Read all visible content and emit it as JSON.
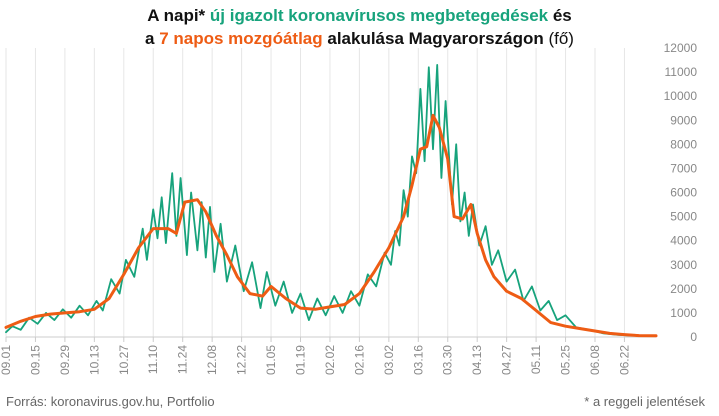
{
  "title": {
    "line1_part1": "A napi* ",
    "line1_part2": "új igazolt koronavírusos megbetegedések",
    "line1_part3": " és",
    "line2_part1": "a ",
    "line2_part2": "7 napos mozgóátlag",
    "line2_part3": " alakulása Magyarországon",
    "line2_part4": " (fő)"
  },
  "source": "Forrás: koronavirus.gov.hu, Portfolio",
  "footnote": "* a reggeli jelentések",
  "colors": {
    "daily": "#17a37c",
    "average": "#ee5c14",
    "grid": "#e6e6e6",
    "axis": "#cccccc"
  },
  "chart_data": {
    "type": "line",
    "x_type": "date",
    "x_range": [
      "2020-09-01",
      "2021-07-07"
    ],
    "xticks": [
      "2020-09-01",
      "2020-09-15",
      "2020-09-29",
      "2020-10-13",
      "2020-10-27",
      "2020-11-10",
      "2020-11-24",
      "2020-12-08",
      "2020-12-22",
      "2021-01-05",
      "2021-01-19",
      "2021-02-02",
      "2021-02-16",
      "2021-03-02",
      "2021-03-16",
      "2021-03-30",
      "2021-04-13",
      "2021-04-27",
      "2021-05-11",
      "2021-05-25",
      "2021-06-08",
      "2021-06-22"
    ],
    "xtick_labels": [
      "09.01",
      "09.15",
      "09.29",
      "10.13",
      "10.27",
      "11.10",
      "11.24",
      "12.08",
      "12.22",
      "01.05",
      "01.19",
      "02.02",
      "02.16",
      "03.02",
      "03.16",
      "03.30",
      "04.13",
      "04.27",
      "05.11",
      "05.25",
      "06.08",
      "06.22"
    ],
    "ylim": [
      0,
      12000
    ],
    "yticks": [
      0,
      1000,
      2000,
      3000,
      4000,
      5000,
      6000,
      7000,
      8000,
      9000,
      10000,
      11000,
      12000
    ],
    "y_axis_side": "right",
    "grid": "vertical",
    "series": [
      {
        "name": "új igazolt koronavírusos megbetegedések",
        "role": "daily",
        "x": [
          "2020-09-01",
          "2020-09-04",
          "2020-09-08",
          "2020-09-12",
          "2020-09-16",
          "2020-09-20",
          "2020-09-24",
          "2020-09-28",
          "2020-10-02",
          "2020-10-06",
          "2020-10-10",
          "2020-10-14",
          "2020-10-17",
          "2020-10-21",
          "2020-10-25",
          "2020-10-28",
          "2020-11-01",
          "2020-11-05",
          "2020-11-07",
          "2020-11-10",
          "2020-11-12",
          "2020-11-14",
          "2020-11-16",
          "2020-11-19",
          "2020-11-21",
          "2020-11-23",
          "2020-11-26",
          "2020-11-28",
          "2020-12-01",
          "2020-12-03",
          "2020-12-05",
          "2020-12-07",
          "2020-12-09",
          "2020-12-12",
          "2020-12-15",
          "2020-12-19",
          "2020-12-23",
          "2020-12-27",
          "2020-12-31",
          "2021-01-03",
          "2021-01-07",
          "2021-01-11",
          "2021-01-15",
          "2021-01-19",
          "2021-01-23",
          "2021-01-27",
          "2021-01-31",
          "2021-02-04",
          "2021-02-08",
          "2021-02-12",
          "2021-02-16",
          "2021-02-20",
          "2021-02-24",
          "2021-02-28",
          "2021-03-03",
          "2021-03-05",
          "2021-03-07",
          "2021-03-09",
          "2021-03-11",
          "2021-03-13",
          "2021-03-15",
          "2021-03-17",
          "2021-03-19",
          "2021-03-21",
          "2021-03-23",
          "2021-03-25",
          "2021-03-27",
          "2021-03-29",
          "2021-04-01",
          "2021-04-03",
          "2021-04-05",
          "2021-04-07",
          "2021-04-09",
          "2021-04-11",
          "2021-04-14",
          "2021-04-17",
          "2021-04-20",
          "2021-04-23",
          "2021-04-27",
          "2021-05-01",
          "2021-05-05",
          "2021-05-09",
          "2021-05-13",
          "2021-05-17",
          "2021-05-21",
          "2021-05-25",
          "2021-05-30",
          "2021-06-05",
          "2021-06-12",
          "2021-06-19",
          "2021-06-26",
          "2021-07-03"
        ],
        "values": [
          200,
          450,
          300,
          800,
          550,
          1000,
          700,
          1150,
          800,
          1300,
          900,
          1500,
          1100,
          2400,
          1800,
          3200,
          2500,
          4500,
          3200,
          5300,
          4100,
          5800,
          3900,
          6800,
          4200,
          6600,
          3400,
          6000,
          3600,
          5600,
          3300,
          5400,
          2700,
          4700,
          2300,
          3800,
          1900,
          3100,
          1200,
          2700,
          1300,
          2300,
          1000,
          1800,
          700,
          1600,
          900,
          1700,
          1000,
          1900,
          1300,
          2600,
          2100,
          3500,
          3000,
          4400,
          3800,
          6100,
          5000,
          7500,
          6800,
          10300,
          7300,
          11200,
          7800,
          11300,
          6600,
          9800,
          5500,
          8000,
          4800,
          6000,
          4200,
          5500,
          3800,
          4600,
          3000,
          3600,
          2300,
          2800,
          1500,
          2100,
          1100,
          1500,
          700,
          900,
          400,
          300,
          150,
          90,
          60,
          50
        ]
      },
      {
        "name": "7 napos mozgóátlag",
        "role": "average",
        "x": [
          "2020-09-01",
          "2020-09-08",
          "2020-09-15",
          "2020-09-22",
          "2020-09-29",
          "2020-10-06",
          "2020-10-13",
          "2020-10-20",
          "2020-10-27",
          "2020-11-03",
          "2020-11-10",
          "2020-11-17",
          "2020-11-21",
          "2020-11-25",
          "2020-12-01",
          "2020-12-05",
          "2020-12-10",
          "2020-12-15",
          "2020-12-20",
          "2020-12-26",
          "2021-01-01",
          "2021-01-05",
          "2021-01-12",
          "2021-01-19",
          "2021-01-26",
          "2021-02-02",
          "2021-02-09",
          "2021-02-16",
          "2021-02-23",
          "2021-03-02",
          "2021-03-09",
          "2021-03-13",
          "2021-03-17",
          "2021-03-20",
          "2021-03-23",
          "2021-03-26",
          "2021-03-30",
          "2021-04-02",
          "2021-04-06",
          "2021-04-10",
          "2021-04-13",
          "2021-04-17",
          "2021-04-21",
          "2021-04-27",
          "2021-05-04",
          "2021-05-11",
          "2021-05-18",
          "2021-05-25",
          "2021-06-01",
          "2021-06-08",
          "2021-06-15",
          "2021-06-22",
          "2021-06-29",
          "2021-07-07"
        ],
        "values": [
          400,
          650,
          850,
          950,
          1000,
          1050,
          1150,
          1600,
          2600,
          3700,
          4500,
          4500,
          4300,
          5600,
          5700,
          5200,
          4200,
          3400,
          2500,
          1800,
          1700,
          2100,
          1600,
          1200,
          1150,
          1250,
          1350,
          1800,
          2700,
          3700,
          5000,
          6300,
          7800,
          7900,
          9200,
          8700,
          7400,
          5000,
          4900,
          5500,
          4300,
          3200,
          2500,
          1900,
          1600,
          1100,
          600,
          450,
          350,
          250,
          150,
          100,
          60,
          50
        ]
      }
    ]
  }
}
